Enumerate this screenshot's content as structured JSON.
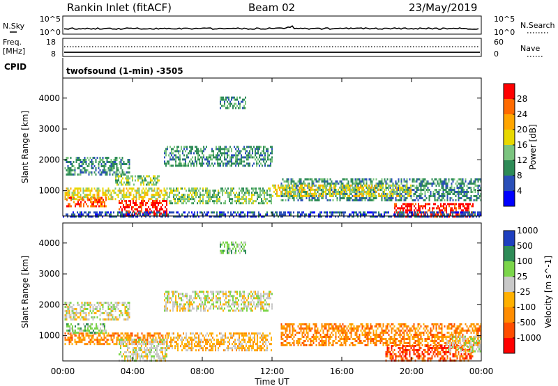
{
  "header": {
    "station": "Rankin Inlet (fitACF)",
    "beam": "Beam 02",
    "date": "23/May/2019"
  },
  "nsky_panel": {
    "left_label": "N.Sky",
    "right_label": "N.Search",
    "left_ticks": [
      "10^5",
      "10^0"
    ],
    "right_ticks": [
      "10^5",
      "10^0"
    ]
  },
  "freq_panel": {
    "left_label_line1": "Freq.",
    "left_label_line2": "[MHz]",
    "right_label": "Nave",
    "left_ticks": [
      "18",
      "8"
    ],
    "right_ticks": [
      "60",
      "0"
    ]
  },
  "cpid": {
    "label": "CPID",
    "text": "twofsound (1-min) -3505"
  },
  "x_axis": {
    "title": "Time UT",
    "ticks": [
      "00:00",
      "04:00",
      "08:00",
      "12:00",
      "16:00",
      "20:00",
      "00:00"
    ]
  },
  "colors": {
    "power": [
      "#0000ff",
      "#2a4fb8",
      "#2e8b57",
      "#7bc47f",
      "#e8d800",
      "#ffa500",
      "#ff6a00",
      "#ff0000"
    ],
    "velocity": [
      "#ff0000",
      "#ff4d00",
      "#ff8c00",
      "#ffb000",
      "#c8c8c8",
      "#7bd54a",
      "#2e8b57",
      "#1e3fbf"
    ]
  },
  "chart_data": [
    {
      "type": "heatmap",
      "name": "power",
      "x_range_hours": [
        0,
        24
      ],
      "ylabel": "Slant Range [km]",
      "ylim_km": [
        180,
        4650
      ],
      "y_ticks": [
        1000,
        2000,
        3000,
        4000
      ],
      "colorbar_label": "Power [dB]",
      "colorbar_ticks": [
        "4",
        "8",
        "12",
        "16",
        "20",
        "24",
        "28"
      ],
      "regions": [
        {
          "t": [
            0.1,
            3.8
          ],
          "r": [
            1500,
            2100
          ],
          "level": 2
        },
        {
          "t": [
            0.1,
            6.0
          ],
          "r": [
            700,
            1100
          ],
          "level": 4
        },
        {
          "t": [
            0.2,
            2.5
          ],
          "r": [
            500,
            800
          ],
          "level": 6
        },
        {
          "t": [
            3.2,
            6.0
          ],
          "r": [
            180,
            700
          ],
          "level": 7
        },
        {
          "t": [
            3.0,
            5.5
          ],
          "r": [
            1200,
            1500
          ],
          "level": 3
        },
        {
          "t": [
            5.8,
            12.0
          ],
          "r": [
            1800,
            2450
          ],
          "level": 2
        },
        {
          "t": [
            6.0,
            12.0
          ],
          "r": [
            600,
            1100
          ],
          "level": 3
        },
        {
          "t": [
            9.0,
            10.5
          ],
          "r": [
            3700,
            4050
          ],
          "level": 2
        },
        {
          "t": [
            12.5,
            24.0
          ],
          "r": [
            700,
            1400
          ],
          "level": 2
        },
        {
          "t": [
            12.0,
            20.0
          ],
          "r": [
            800,
            1200
          ],
          "level": 4
        },
        {
          "t": [
            19.0,
            23.5
          ],
          "r": [
            180,
            600
          ],
          "level": 7
        },
        {
          "t": [
            0.0,
            24.0
          ],
          "r": [
            180,
            330
          ],
          "level": 1
        }
      ]
    },
    {
      "type": "heatmap",
      "name": "velocity",
      "x_range_hours": [
        0,
        24
      ],
      "ylabel": "Slant Range [km]",
      "ylim_km": [
        180,
        4650
      ],
      "y_ticks": [
        1000,
        2000,
        3000,
        4000
      ],
      "colorbar_label": "Velocity [m s^-1]",
      "colorbar_ticks": [
        "-1000",
        "-500",
        "-100",
        "-25",
        "25",
        "100",
        "500",
        "1000"
      ],
      "regions": [
        {
          "t": [
            0.1,
            3.8
          ],
          "r": [
            1500,
            2100
          ],
          "level": 4
        },
        {
          "t": [
            0.1,
            6.0
          ],
          "r": [
            700,
            1100
          ],
          "level": 2
        },
        {
          "t": [
            0.2,
            2.5
          ],
          "r": [
            1100,
            1400
          ],
          "level": 5
        },
        {
          "t": [
            3.2,
            6.0
          ],
          "r": [
            180,
            900
          ],
          "level": 4
        },
        {
          "t": [
            5.8,
            12.0
          ],
          "r": [
            1800,
            2450
          ],
          "level": 4
        },
        {
          "t": [
            6.0,
            12.0
          ],
          "r": [
            500,
            1100
          ],
          "level": 3
        },
        {
          "t": [
            9.0,
            10.5
          ],
          "r": [
            3700,
            4050
          ],
          "level": 5
        },
        {
          "t": [
            12.5,
            24.0
          ],
          "r": [
            700,
            1400
          ],
          "level": 2
        },
        {
          "t": [
            18.5,
            23.5
          ],
          "r": [
            180,
            700
          ],
          "level": 1
        },
        {
          "t": [
            22.0,
            24.0
          ],
          "r": [
            500,
            1000
          ],
          "level": 4
        }
      ]
    }
  ]
}
